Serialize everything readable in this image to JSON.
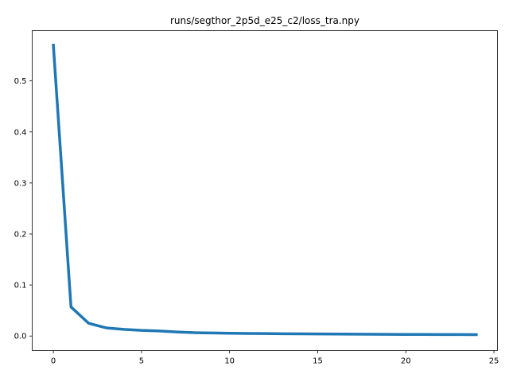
{
  "chart_data": {
    "type": "line",
    "title": "runs/segthor_2p5d_e25_c2/loss_tra.npy",
    "xlabel": "",
    "ylabel": "",
    "xlim": [
      -1.2,
      25.2
    ],
    "ylim": [
      -0.0285,
      0.5985
    ],
    "xticks": [
      0,
      5,
      10,
      15,
      20,
      25
    ],
    "yticks": [
      0.0,
      0.1,
      0.2,
      0.3,
      0.4,
      0.5
    ],
    "xtick_labels": [
      "0",
      "5",
      "10",
      "15",
      "20",
      "25"
    ],
    "ytick_labels": [
      "0.0",
      "0.1",
      "0.2",
      "0.3",
      "0.4",
      "0.5"
    ],
    "grid": false,
    "series": [
      {
        "color": "#1f77b4",
        "x": [
          0,
          1,
          2,
          3,
          4,
          5,
          6,
          7,
          8,
          9,
          10,
          11,
          12,
          13,
          14,
          15,
          16,
          17,
          18,
          19,
          20,
          21,
          22,
          23,
          24
        ],
        "y": [
          0.57,
          0.057,
          0.025,
          0.016,
          0.013,
          0.011,
          0.01,
          0.008,
          0.0065,
          0.006,
          0.0055,
          0.005,
          0.0048,
          0.0045,
          0.0042,
          0.004,
          0.0038,
          0.0036,
          0.0034,
          0.0032,
          0.0031,
          0.003,
          0.0029,
          0.0028,
          0.0027
        ]
      }
    ]
  }
}
